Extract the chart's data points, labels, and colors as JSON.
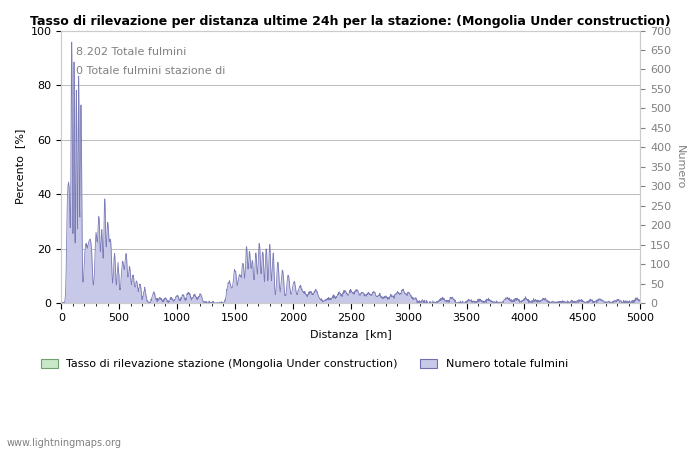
{
  "title": "Tasso di rilevazione per distanza ultime 24h per la stazione: (Mongolia Under construction)",
  "xlabel": "Distanza  [km]",
  "ylabel_left": "Percento  [%]",
  "ylabel_right": "Numero",
  "annotation_line1": "8.202 Totale fulmini",
  "annotation_line2": "0 Totale fulmini stazione di",
  "legend_green": "Tasso di rilevazione stazione (Mongolia Under construction)",
  "legend_blue": "Numero totale fulmini",
  "watermark": "www.lightningmaps.org",
  "xlim": [
    0,
    5000
  ],
  "ylim_left": [
    0,
    100
  ],
  "ylim_right": [
    0,
    700
  ],
  "xticks": [
    0,
    500,
    1000,
    1500,
    2000,
    2500,
    3000,
    3500,
    4000,
    4500,
    5000
  ],
  "yticks_left": [
    0,
    20,
    40,
    60,
    80,
    100
  ],
  "yticks_right": [
    0,
    50,
    100,
    150,
    200,
    250,
    300,
    350,
    400,
    450,
    500,
    550,
    600,
    650,
    700
  ],
  "color_blue_fill": "#c8c8e8",
  "color_blue_line": "#7070b0",
  "color_green_fill": "#c8e8c8",
  "color_green_line": "#70a070",
  "background_color": "#ffffff",
  "grid_color": "#bbbbbb",
  "title_fontsize": 9,
  "axis_fontsize": 8,
  "tick_fontsize": 8,
  "annotation_fontsize": 8
}
